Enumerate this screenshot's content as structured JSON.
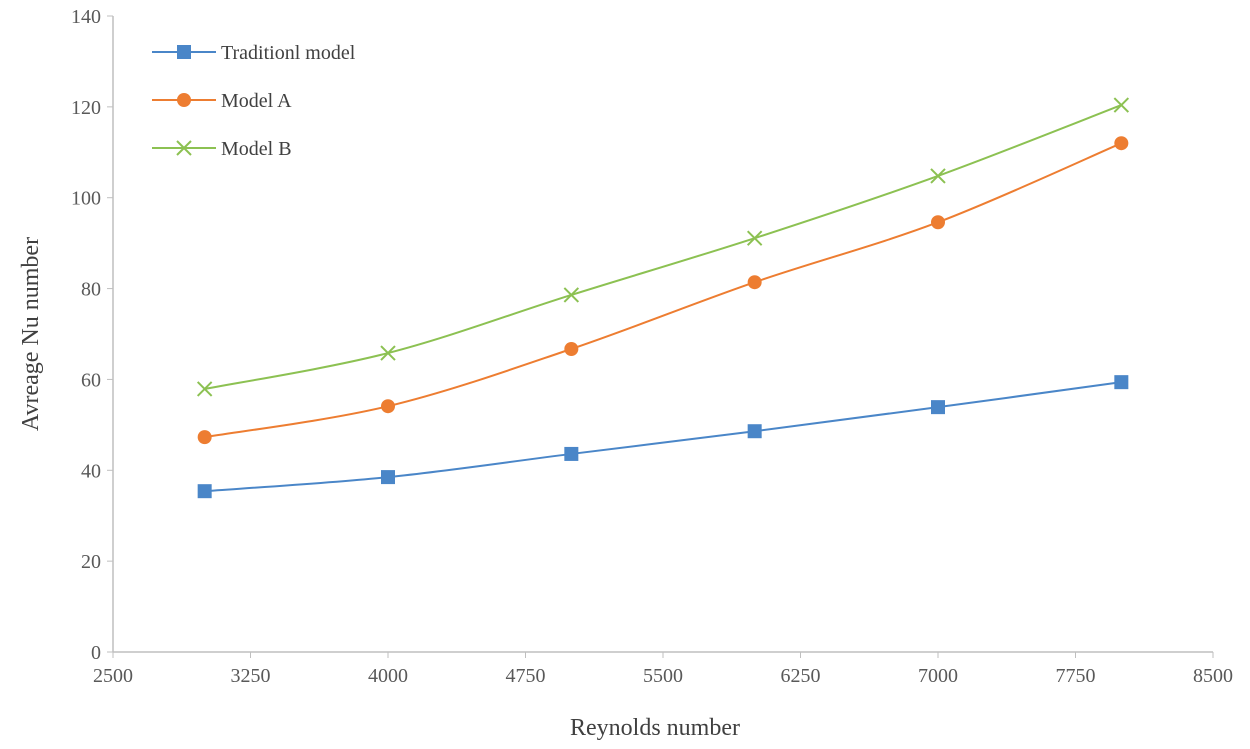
{
  "chart_data": {
    "type": "line",
    "title": "",
    "xlabel": "Reynolds number",
    "ylabel": "Avreage Nu number",
    "xlim": [
      2500,
      8500
    ],
    "ylim": [
      0,
      140
    ],
    "xticks": [
      2500,
      3250,
      4000,
      4750,
      5500,
      6250,
      7000,
      7750,
      8500
    ],
    "yticks": [
      0,
      20,
      40,
      60,
      80,
      100,
      120,
      140
    ],
    "grid": false,
    "legend_placement": "top-left",
    "smoothed": true,
    "x": [
      3000,
      4000,
      5000,
      6000,
      7000,
      8000
    ],
    "series": [
      {
        "name": "Traditionl model",
        "color": "#4a86c8",
        "marker": "square",
        "values": [
          35.4,
          38.5,
          43.6,
          48.6,
          53.9,
          59.4
        ]
      },
      {
        "name": "Model A",
        "color": "#ed7d31",
        "marker": "circle",
        "values": [
          47.3,
          54.1,
          66.7,
          81.4,
          94.6,
          112.0
        ]
      },
      {
        "name": "Model B",
        "color": "#8cc152",
        "marker": "x",
        "values": [
          57.9,
          65.8,
          78.6,
          91.1,
          104.8,
          120.4
        ]
      }
    ]
  }
}
